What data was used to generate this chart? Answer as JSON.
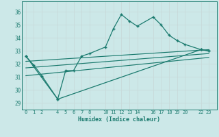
{
  "xlabel": "Humidex (Indice chaleur)",
  "bg_color": "#cce8e8",
  "grid_color": "#b0d4d4",
  "line_color": "#1a7a6e",
  "xtick_positions": [
    0,
    1,
    2,
    4,
    5,
    6,
    7,
    8,
    10,
    11,
    12,
    13,
    14,
    16,
    17,
    18,
    19,
    20,
    22,
    23
  ],
  "xtick_labels": [
    "0",
    "1",
    "2",
    "4",
    "5",
    "6",
    "7",
    "8",
    "10",
    "11",
    "12",
    "13",
    "14",
    "16",
    "17",
    "18",
    "19",
    "20",
    "22",
    "23"
  ],
  "ytick_positions": [
    29,
    30,
    31,
    32,
    33,
    34,
    35,
    36
  ],
  "ytick_labels": [
    "29",
    "30",
    "31",
    "32",
    "33",
    "34",
    "35",
    "36"
  ],
  "xlim": [
    -0.5,
    24.0
  ],
  "ylim": [
    28.5,
    36.8
  ],
  "line1_x": [
    0,
    1,
    2,
    4,
    5,
    6,
    7,
    8,
    10,
    11,
    12,
    13,
    14,
    16,
    17,
    18,
    19,
    20,
    22,
    23
  ],
  "line1_y": [
    32.6,
    31.9,
    31.1,
    29.3,
    31.5,
    31.5,
    32.6,
    32.8,
    33.3,
    34.7,
    35.8,
    35.3,
    34.9,
    35.6,
    35.0,
    34.2,
    33.8,
    33.5,
    33.1,
    33.0
  ],
  "line2_x": [
    0,
    4,
    22,
    23
  ],
  "line2_y": [
    32.6,
    29.3,
    33.1,
    33.0
  ],
  "line3_x": [
    0,
    23
  ],
  "line3_y": [
    32.2,
    33.1
  ],
  "line4_x": [
    0,
    23
  ],
  "line4_y": [
    31.7,
    32.8
  ],
  "line5_x": [
    0,
    23
  ],
  "line5_y": [
    31.1,
    32.5
  ]
}
